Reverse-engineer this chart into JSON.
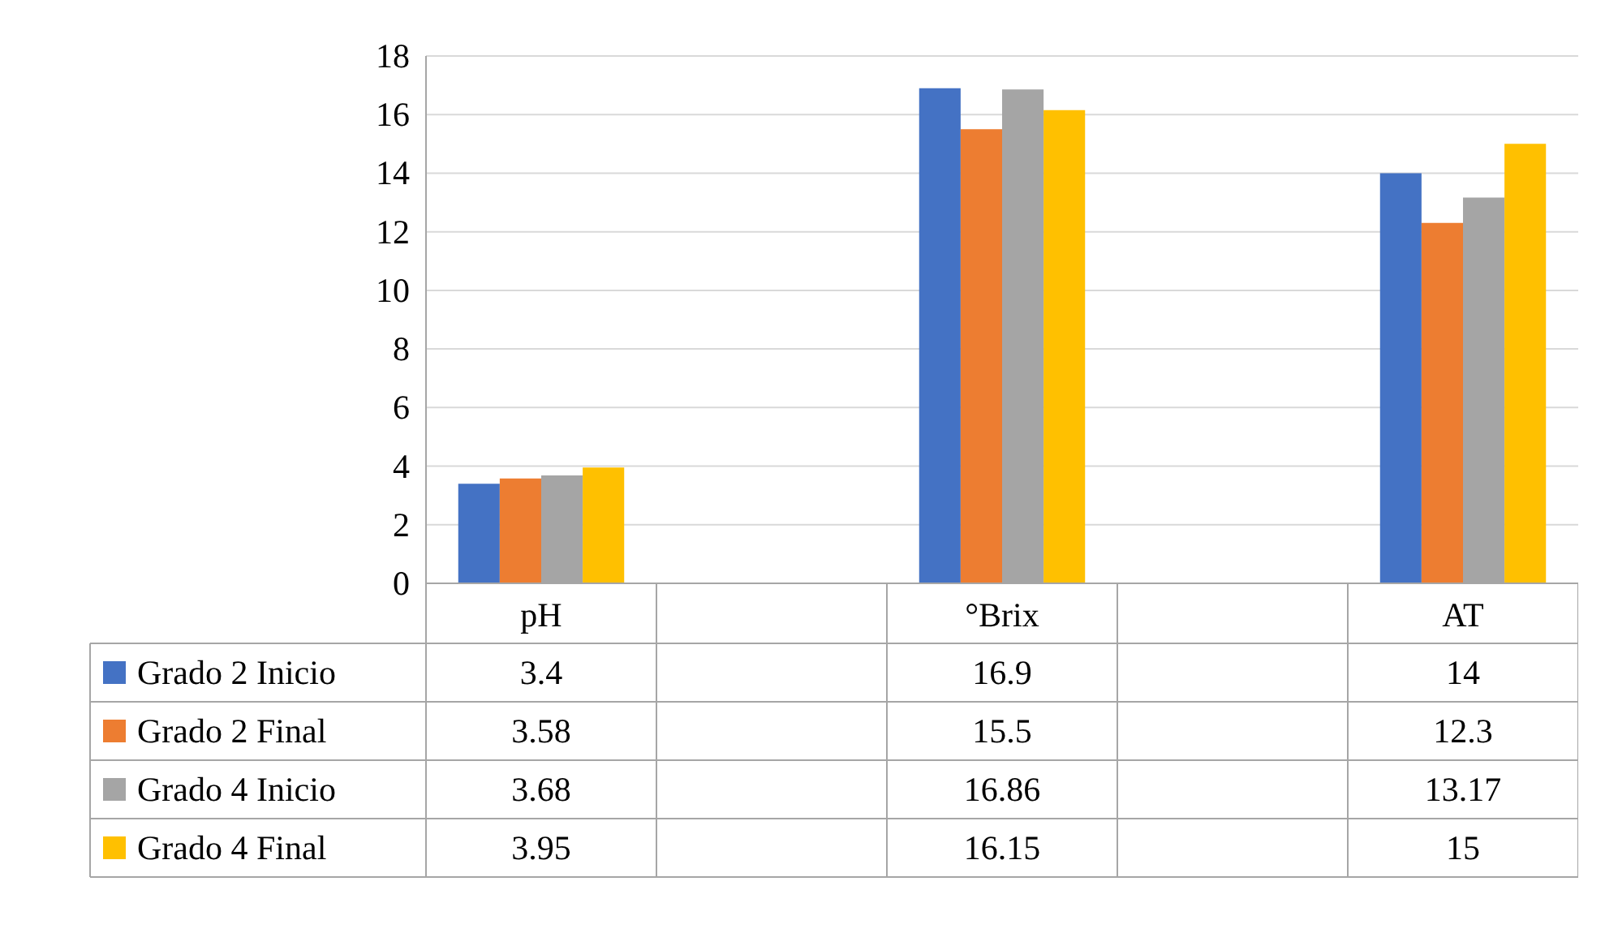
{
  "chart_data": {
    "type": "bar",
    "categories": [
      "pH",
      null,
      "°Brix",
      null,
      "AT"
    ],
    "series": [
      {
        "name": "Grado 2 Inicio",
        "color": "#4472c4",
        "values": [
          3.4,
          null,
          16.9,
          null,
          14
        ]
      },
      {
        "name": "Grado 2 Final",
        "color": "#ed7d31",
        "values": [
          3.58,
          null,
          15.5,
          null,
          12.3
        ]
      },
      {
        "name": "Grado 4 Inicio",
        "color": "#a5a5a5",
        "values": [
          3.68,
          null,
          16.86,
          null,
          13.17
        ]
      },
      {
        "name": "Grado 4 Final",
        "color": "#ffc000",
        "values": [
          3.95,
          null,
          16.15,
          null,
          15
        ]
      }
    ],
    "ylim": [
      0,
      18
    ],
    "yticks": [
      0,
      2,
      4,
      6,
      8,
      10,
      12,
      14,
      16,
      18
    ],
    "grid": "y",
    "legend": "bottom",
    "data_labels": true
  }
}
